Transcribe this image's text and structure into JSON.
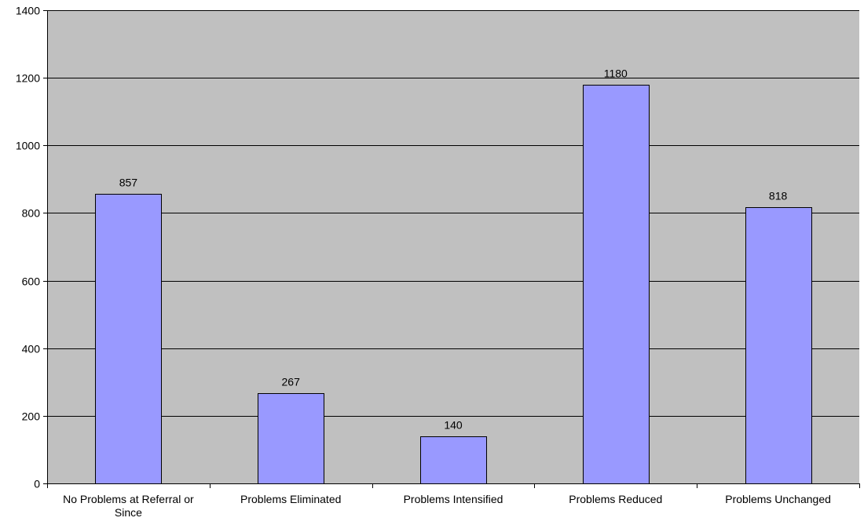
{
  "chart_data": {
    "type": "bar",
    "title": "",
    "xlabel": "",
    "ylabel": "",
    "categories": [
      [
        "No Problems at Referral or",
        "Since"
      ],
      [
        "Problems Eliminated"
      ],
      [
        "Problems Intensified"
      ],
      [
        "Problems Reduced"
      ],
      [
        "Problems Unchanged"
      ]
    ],
    "values": [
      857,
      267,
      140,
      1180,
      818
    ],
    "data_labels": [
      "857",
      "267",
      "140",
      "1180",
      "818"
    ],
    "yticks": [
      0,
      200,
      400,
      600,
      800,
      1000,
      1200,
      1400
    ],
    "ylim": [
      0,
      1400
    ],
    "grid": true,
    "legend": "none",
    "colors": {
      "plot_background": "#c0c0c0",
      "bar_fill": "#9999ff",
      "bar_stroke": "#000000",
      "gridline": "#000000"
    }
  }
}
